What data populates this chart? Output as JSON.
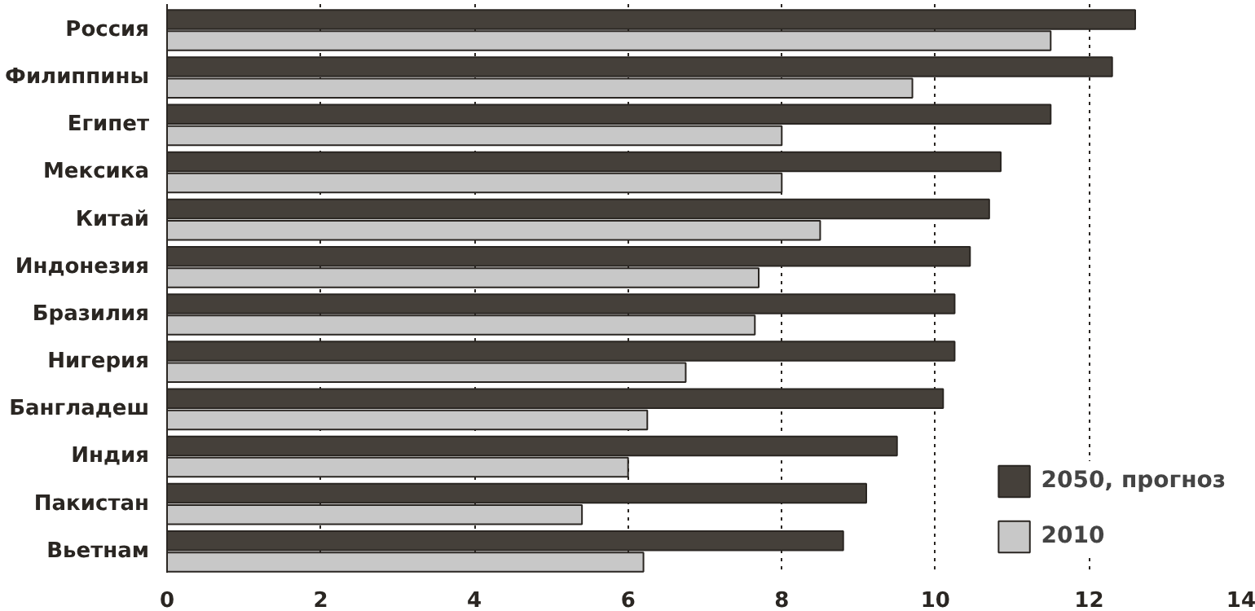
{
  "chart_data": {
    "type": "bar",
    "orientation": "horizontal",
    "categories": [
      "Россия",
      "Филиппины",
      "Египет",
      "Мексика",
      "Китай",
      "Индонезия",
      "Бразилия",
      "Нигерия",
      "Бангладеш",
      "Индия",
      "Пакистан",
      "Вьетнам"
    ],
    "series": [
      {
        "name": "2050, прогноз",
        "color": "#45403a",
        "values": [
          12.6,
          12.3,
          11.5,
          10.85,
          10.7,
          10.45,
          10.25,
          10.25,
          10.1,
          9.5,
          9.1,
          8.8
        ]
      },
      {
        "name": "2010",
        "color": "#c8c8c8",
        "values": [
          11.5,
          9.7,
          8.0,
          8.0,
          8.5,
          7.7,
          7.65,
          6.75,
          6.25,
          6.0,
          5.4,
          6.2
        ]
      }
    ],
    "xlim": [
      0,
      14
    ],
    "xticks": [
      0,
      2,
      4,
      6,
      8,
      10,
      12,
      14
    ],
    "grid": "x",
    "legend": "bottom right"
  }
}
